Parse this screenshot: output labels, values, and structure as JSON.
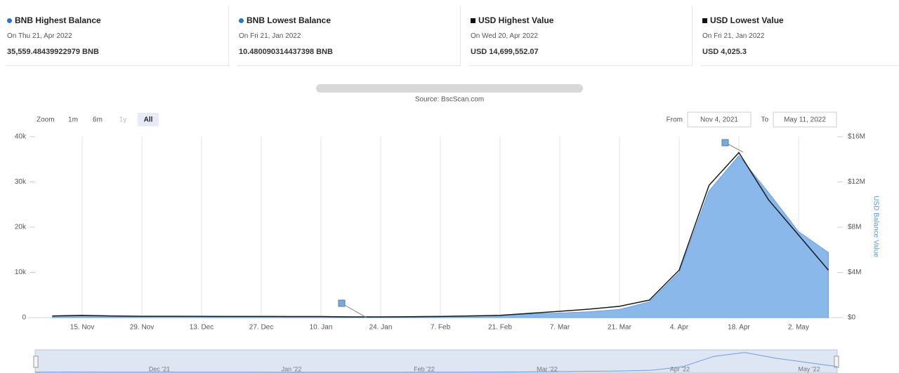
{
  "cards": [
    {
      "title": "BNB Highest Balance",
      "date": "On Thu 21, Apr 2022",
      "value": "35,559.48439922979 BNB"
    },
    {
      "title": "BNB Lowest Balance",
      "date": "On Fri 21, Jan 2022",
      "value": "10.480090314437398 BNB"
    },
    {
      "title": "USD Highest Value",
      "date": "On Wed 20, Apr 2022",
      "value": "USD 14,699,552.07"
    },
    {
      "title": "USD Lowest Value",
      "date": "On Fri 21, Jan 2022",
      "value": "USD 4,025.3"
    }
  ],
  "zoom": {
    "label": "Zoom",
    "buttons": [
      "1m",
      "6m",
      "1y",
      "All"
    ]
  },
  "range": {
    "from_label": "From",
    "from": "Nov 4, 2021",
    "to_label": "To",
    "to": "May 11, 2022"
  },
  "navigator_labels": [
    "Dec '21",
    "Jan '22",
    "Feb '22",
    "Mar '22",
    "Apr '22",
    "May '22"
  ],
  "chart_data": {
    "type": "area-line",
    "source": "Source: BscScan.com",
    "y2label": "USD Balance Value",
    "categories": [
      null,
      "15. Nov",
      null,
      "29. Nov",
      null,
      "13. Dec",
      null,
      "27. Dec",
      null,
      "10. Jan",
      null,
      "24. Jan",
      null,
      "7. Feb",
      null,
      "21. Feb",
      null,
      "7. Mar",
      null,
      "21. Mar",
      null,
      "4. Apr",
      null,
      "18. Apr",
      null,
      "2. May",
      null
    ],
    "series": [
      {
        "type": "area",
        "color": "#8bb8ea",
        "values": [
          300,
          350,
          300,
          250,
          250,
          250,
          250,
          250,
          250,
          250,
          200,
          200,
          250,
          300,
          400,
          500,
          800,
          1000,
          1300,
          1800,
          3500,
          10000,
          28000,
          35800,
          27600,
          19000,
          14400
        ]
      },
      {
        "type": "line",
        "axis": "y2",
        "color": "#1a1a1a",
        "values": [
          150000,
          200000,
          150000,
          120000,
          120000,
          110000,
          100000,
          100000,
          90000,
          90000,
          60000,
          60000,
          80000,
          100000,
          150000,
          200000,
          380000,
          560000,
          750000,
          1000000,
          1550000,
          4200000,
          11700000,
          14600000,
          10400000,
          7300000,
          4200000
        ]
      }
    ],
    "ylim": [
      0,
      40000
    ],
    "yticks": [
      0,
      {
        "value": 10000,
        "label": "10k"
      },
      {
        "value": 20000,
        "label": "20k"
      },
      {
        "value": 30000,
        "label": "30k"
      },
      {
        "value": 40000,
        "label": "40k"
      }
    ],
    "y2lim": [
      0,
      16000000
    ],
    "y2ticks": [
      {
        "value": 0,
        "label": "$0"
      },
      {
        "value": 4000000,
        "label": "$4M"
      },
      {
        "value": 8000000,
        "label": "$8M"
      },
      {
        "value": 12000000,
        "label": "$12M"
      },
      {
        "value": 16000000,
        "label": "$16M"
      }
    ],
    "grid": true
  }
}
